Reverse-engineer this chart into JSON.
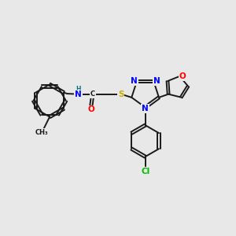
{
  "bg_color": "#e8e8e8",
  "bond_color": "#1a1a1a",
  "bond_lw": 1.4,
  "atom_colors": {
    "N": "#0000ff",
    "O": "#ff0000",
    "S": "#ccaa00",
    "Cl": "#00bb00",
    "H": "#007777",
    "C": "#1a1a1a"
  },
  "fs_main": 7.5,
  "fs_small": 6.0,
  "dbo": 0.055,
  "xlim": [
    0,
    10
  ],
  "ylim": [
    0,
    10
  ]
}
